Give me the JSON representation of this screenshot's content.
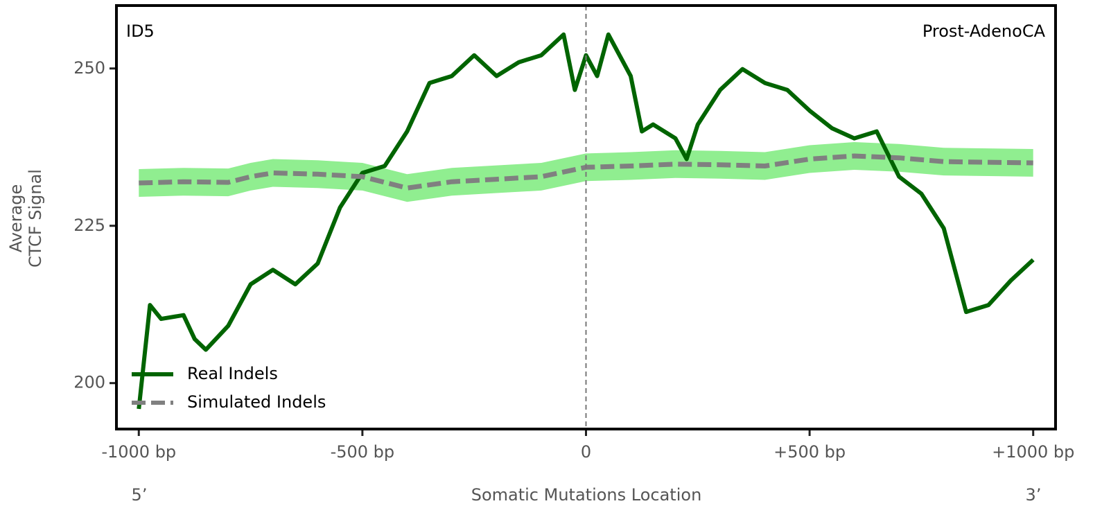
{
  "chart_data": {
    "type": "line",
    "annotations": {
      "left": "ID5",
      "right": "Prost-AdenoCA"
    },
    "xlabel": "Somatic Mutations Location",
    "xlabel_ends": [
      "5’",
      "3’"
    ],
    "ylabel": [
      "Average",
      "CTCF Signal"
    ],
    "xlim": [
      -1050,
      1050
    ],
    "xticks": [
      {
        "value": -1000,
        "label": "-1000 bp"
      },
      {
        "value": -500,
        "label": "-500 bp"
      },
      0,
      {
        "value": 500,
        "label": "+500 bp"
      },
      {
        "value": 1000,
        "label": "+1000 bp"
      }
    ],
    "ylim": [
      192.7,
      260
    ],
    "yticks": [
      200,
      225,
      250
    ],
    "vline": 0,
    "legend": "lower left",
    "series": [
      {
        "name": "Real Indels",
        "color": "#006400",
        "style": "solid",
        "x": [
          -1000,
          -975,
          -950,
          -900,
          -875,
          -850,
          -800,
          -750,
          -700,
          -650,
          -600,
          -550,
          -500,
          -450,
          -400,
          -350,
          -300,
          -250,
          -200,
          -150,
          -100,
          -50,
          -25,
          0,
          25,
          50,
          100,
          125,
          150,
          200,
          225,
          250,
          300,
          350,
          400,
          450,
          500,
          550,
          600,
          650,
          700,
          750,
          800,
          850,
          900,
          950,
          1000
        ],
        "values": [
          195.9,
          212.4,
          210.2,
          210.8,
          207,
          205.3,
          209.1,
          215.7,
          218,
          215.7,
          219,
          227.9,
          233.4,
          234.5,
          240,
          247.7,
          248.8,
          252.1,
          248.8,
          251,
          252.1,
          255.4,
          246.6,
          252.1,
          248.8,
          255.4,
          248.8,
          240,
          241.1,
          238.9,
          235.6,
          241.1,
          246.6,
          249.9,
          247.7,
          246.6,
          243.3,
          240.5,
          238.9,
          240,
          232.8,
          230.1,
          224.6,
          211.3,
          212.4,
          216.3,
          219.6
        ]
      },
      {
        "name": "Simulated Indels",
        "color": "#808080",
        "style": "dashed",
        "band_color": "#90ee90",
        "x": [
          -1000,
          -900,
          -800,
          -750,
          -700,
          -600,
          -500,
          -400,
          -300,
          -200,
          -100,
          0,
          100,
          200,
          300,
          400,
          500,
          600,
          700,
          800,
          900,
          1000
        ],
        "values": [
          231.8,
          232,
          231.9,
          232.8,
          233.4,
          233.2,
          232.8,
          231,
          232,
          232.4,
          232.8,
          234.3,
          234.5,
          234.8,
          234.7,
          234.5,
          235.6,
          236.1,
          235.8,
          235.2,
          235.1,
          235
        ],
        "lower": [
          229.6,
          229.8,
          229.7,
          230.6,
          231.2,
          231,
          230.6,
          228.8,
          229.8,
          230.2,
          230.6,
          232.1,
          232.3,
          232.6,
          232.5,
          232.3,
          233.4,
          233.9,
          233.6,
          233,
          232.9,
          232.8
        ],
        "upper": [
          234,
          234.2,
          234.1,
          235,
          235.6,
          235.4,
          235,
          233.2,
          234.2,
          234.6,
          235,
          236.5,
          236.7,
          237,
          236.9,
          236.7,
          237.8,
          238.3,
          238,
          237.4,
          237.3,
          237.2
        ]
      }
    ]
  }
}
